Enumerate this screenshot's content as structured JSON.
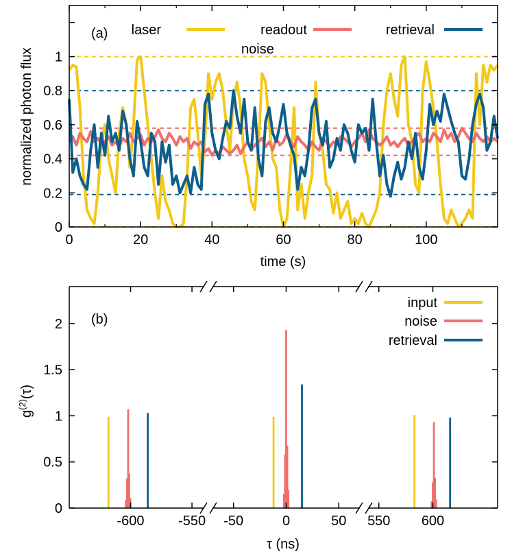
{
  "colors": {
    "yellow": "#f2c81b",
    "red": "#ef6f6c",
    "blue": "#0e5f8b",
    "black": "#000000"
  },
  "chart_data": [
    {
      "panel_label": "(a)",
      "type": "line",
      "xlabel": "time (s)",
      "ylabel": "normalized photon flux",
      "xlim": [
        0,
        120
      ],
      "ylim": [
        0,
        1.3
      ],
      "xticks": [
        0,
        20,
        40,
        60,
        80,
        100
      ],
      "yticks": [
        0,
        0.2,
        0.4,
        0.6,
        0.8,
        1
      ],
      "xtick_labels": [
        "0",
        "20",
        "40",
        "60",
        "80",
        "100"
      ],
      "ytick_labels": [
        "0",
        "0.2",
        "0.4",
        "0.6",
        "0.8",
        "1"
      ],
      "legend": [
        {
          "label": "laser",
          "color": "#f2c81b"
        },
        {
          "label": "readout",
          "label2": "noise",
          "color": "#ef6f6c"
        },
        {
          "label": "retrieval",
          "color": "#0e5f8b"
        }
      ],
      "reference_lines": [
        {
          "y": 1.0,
          "color": "#f2c81b"
        },
        {
          "y": 0.0,
          "color": "#f2c81b"
        },
        {
          "y": 0.8,
          "color": "#0e5f8b"
        },
        {
          "y": 0.19,
          "color": "#0e5f8b"
        },
        {
          "y": 0.58,
          "color": "#ef6f6c"
        },
        {
          "y": 0.42,
          "color": "#ef6f6c"
        }
      ],
      "series": [
        {
          "name": "laser",
          "color": "#f2c81b",
          "x": [
            0,
            1,
            2,
            3,
            4,
            5,
            6,
            7,
            8,
            9,
            10,
            11,
            12,
            13,
            14,
            15,
            16,
            17,
            18,
            19,
            20,
            21,
            22,
            23,
            24,
            25,
            26,
            27,
            28,
            29,
            30,
            31,
            32,
            33,
            34,
            35,
            36,
            37,
            38,
            39,
            40,
            41,
            42,
            43,
            44,
            45,
            46,
            47,
            48,
            49,
            50,
            51,
            52,
            53,
            54,
            55,
            56,
            57,
            58,
            59,
            60,
            61,
            62,
            63,
            64,
            65,
            66,
            67,
            68,
            69,
            70,
            71,
            72,
            73,
            74,
            75,
            76,
            77,
            78,
            79,
            80,
            81,
            82,
            83,
            84,
            85,
            86,
            87,
            88,
            89,
            90,
            91,
            92,
            93,
            94,
            95,
            96,
            97,
            98,
            99,
            100,
            101,
            102,
            103,
            104,
            105,
            106,
            107,
            108,
            109,
            110,
            111,
            112,
            113,
            114,
            115,
            116,
            117,
            118,
            119,
            120
          ],
          "y": [
            0.92,
            0.95,
            0.94,
            0.7,
            0.3,
            0.1,
            0.05,
            0.02,
            0.2,
            0.5,
            0.6,
            0.4,
            0.3,
            0.2,
            0.55,
            0.7,
            0.6,
            0.35,
            0.6,
            0.98,
            1.0,
            0.8,
            0.6,
            0.4,
            0.2,
            0.05,
            0.3,
            0.15,
            0.1,
            0.02,
            0.0,
            0.0,
            0.02,
            0.3,
            0.7,
            0.75,
            0.55,
            0.3,
            0.5,
            0.9,
            0.75,
            0.85,
            0.9,
            0.8,
            0.6,
            0.45,
            0.75,
            0.85,
            0.7,
            0.4,
            0.3,
            0.15,
            0.1,
            0.45,
            0.9,
            0.85,
            0.6,
            0.4,
            0.35,
            0.1,
            0.0,
            0.05,
            0.35,
            0.7,
            0.1,
            0.25,
            0.05,
            0.2,
            0.3,
            0.85,
            0.55,
            0.45,
            0.25,
            0.22,
            0.08,
            0.2,
            0.05,
            0.1,
            0.15,
            0.02,
            0.05,
            0.02,
            0.08,
            0.02,
            0.0,
            0.05,
            0.1,
            0.2,
            0.6,
            0.8,
            0.9,
            0.75,
            0.65,
            0.95,
            1.0,
            0.6,
            0.5,
            0.25,
            0.2,
            0.8,
            0.97,
            0.85,
            0.7,
            0.5,
            0.25,
            0.05,
            0.02,
            0.1,
            0.05,
            0.0,
            0.02,
            0.05,
            0.1,
            0.05,
            0.9,
            0.6,
            0.95,
            0.85,
            0.95,
            0.92,
            0.95
          ]
        },
        {
          "name": "readout noise",
          "color": "#ef6f6c",
          "x": [
            0,
            1,
            2,
            3,
            4,
            5,
            6,
            7,
            8,
            9,
            10,
            11,
            12,
            13,
            14,
            15,
            16,
            17,
            18,
            19,
            20,
            21,
            22,
            23,
            24,
            25,
            26,
            27,
            28,
            29,
            30,
            31,
            32,
            33,
            34,
            35,
            36,
            37,
            38,
            39,
            40,
            41,
            42,
            43,
            44,
            45,
            46,
            47,
            48,
            49,
            50,
            51,
            52,
            53,
            54,
            55,
            56,
            57,
            58,
            59,
            60,
            61,
            62,
            63,
            64,
            65,
            66,
            67,
            68,
            69,
            70,
            71,
            72,
            73,
            74,
            75,
            76,
            77,
            78,
            79,
            80,
            81,
            82,
            83,
            84,
            85,
            86,
            87,
            88,
            89,
            90,
            91,
            92,
            93,
            94,
            95,
            96,
            97,
            98,
            99,
            100,
            101,
            102,
            103,
            104,
            105,
            106,
            107,
            108,
            109,
            110,
            111,
            112,
            113,
            114,
            115,
            116,
            117,
            118,
            119,
            120
          ],
          "y": [
            0.5,
            0.53,
            0.48,
            0.55,
            0.52,
            0.5,
            0.56,
            0.5,
            0.52,
            0.49,
            0.5,
            0.53,
            0.48,
            0.5,
            0.47,
            0.52,
            0.5,
            0.55,
            0.5,
            0.52,
            0.54,
            0.48,
            0.52,
            0.5,
            0.53,
            0.57,
            0.52,
            0.5,
            0.55,
            0.52,
            0.48,
            0.53,
            0.5,
            0.52,
            0.46,
            0.5,
            0.48,
            0.5,
            0.44,
            0.46,
            0.42,
            0.45,
            0.43,
            0.47,
            0.45,
            0.43,
            0.45,
            0.48,
            0.43,
            0.47,
            0.5,
            0.45,
            0.48,
            0.5,
            0.52,
            0.47,
            0.5,
            0.45,
            0.52,
            0.48,
            0.5,
            0.55,
            0.5,
            0.47,
            0.53,
            0.5,
            0.48,
            0.45,
            0.5,
            0.47,
            0.45,
            0.52,
            0.5,
            0.47,
            0.5,
            0.48,
            0.53,
            0.52,
            0.5,
            0.47,
            0.5,
            0.52,
            0.55,
            0.5,
            0.57,
            0.52,
            0.5,
            0.48,
            0.5,
            0.53,
            0.48,
            0.5,
            0.47,
            0.5,
            0.52,
            0.48,
            0.5,
            0.53,
            0.55,
            0.5,
            0.52,
            0.5,
            0.55,
            0.53,
            0.5,
            0.57,
            0.52,
            0.55,
            0.5,
            0.53,
            0.58,
            0.55,
            0.52,
            0.5,
            0.55,
            0.52,
            0.5,
            0.53,
            0.5,
            0.52,
            0.5
          ]
        },
        {
          "name": "retrieval",
          "color": "#0e5f8b",
          "x": [
            0,
            1,
            2,
            3,
            4,
            5,
            6,
            7,
            8,
            9,
            10,
            11,
            12,
            13,
            14,
            15,
            16,
            17,
            18,
            19,
            20,
            21,
            22,
            23,
            24,
            25,
            26,
            27,
            28,
            29,
            30,
            31,
            32,
            33,
            34,
            35,
            36,
            37,
            38,
            39,
            40,
            41,
            42,
            43,
            44,
            45,
            46,
            47,
            48,
            49,
            50,
            51,
            52,
            53,
            54,
            55,
            56,
            57,
            58,
            59,
            60,
            61,
            62,
            63,
            64,
            65,
            66,
            67,
            68,
            69,
            70,
            71,
            72,
            73,
            74,
            75,
            76,
            77,
            78,
            79,
            80,
            81,
            82,
            83,
            84,
            85,
            86,
            87,
            88,
            89,
            90,
            91,
            92,
            93,
            94,
            95,
            96,
            97,
            98,
            99,
            100,
            101,
            102,
            103,
            104,
            105,
            106,
            107,
            108,
            109,
            110,
            111,
            112,
            113,
            114,
            115,
            116,
            117,
            118,
            119,
            120
          ],
          "y": [
            0.75,
            0.32,
            0.4,
            0.3,
            0.25,
            0.22,
            0.45,
            0.6,
            0.35,
            0.55,
            0.42,
            0.65,
            0.5,
            0.55,
            0.45,
            0.68,
            0.6,
            0.4,
            0.3,
            0.62,
            0.5,
            0.35,
            0.3,
            0.55,
            0.5,
            0.25,
            0.5,
            0.38,
            0.48,
            0.25,
            0.3,
            0.2,
            0.25,
            0.3,
            0.2,
            0.35,
            0.25,
            0.22,
            0.72,
            0.78,
            0.55,
            0.45,
            0.4,
            0.52,
            0.62,
            0.58,
            0.8,
            0.65,
            0.55,
            0.75,
            0.5,
            0.45,
            0.7,
            0.4,
            0.3,
            0.62,
            0.7,
            0.55,
            0.5,
            0.6,
            0.72,
            0.55,
            0.48,
            0.42,
            0.22,
            0.35,
            0.3,
            0.45,
            0.7,
            0.75,
            0.55,
            0.48,
            0.62,
            0.35,
            0.4,
            0.52,
            0.45,
            0.6,
            0.55,
            0.45,
            0.38,
            0.6,
            0.55,
            0.58,
            0.45,
            0.75,
            0.5,
            0.3,
            0.42,
            0.25,
            0.18,
            0.3,
            0.38,
            0.28,
            0.35,
            0.5,
            0.4,
            0.55,
            0.35,
            0.28,
            0.45,
            0.72,
            0.6,
            0.68,
            0.62,
            0.78,
            0.7,
            0.62,
            0.55,
            0.5,
            0.3,
            0.28,
            0.4,
            0.6,
            0.72,
            0.78,
            0.7,
            0.45,
            0.5,
            0.65,
            0.52
          ]
        }
      ]
    },
    {
      "panel_label": "(b)",
      "type": "bar",
      "xlabel": "τ (ns)",
      "ylabel": "g(2)(τ)",
      "ylim": [
        0,
        2.4
      ],
      "yticks": [
        0,
        0.5,
        1,
        1.5,
        2
      ],
      "ytick_labels": [
        "0",
        "0.5",
        "1",
        "1.5",
        "2"
      ],
      "x_segments": [
        {
          "xlim": [
            -650,
            -540
          ],
          "xticks": [
            -600,
            -550
          ],
          "xtick_labels": [
            "-600",
            "-550"
          ]
        },
        {
          "xlim": [
            -70,
            70
          ],
          "xticks": [
            -50,
            0,
            50
          ],
          "xtick_labels": [
            "-50",
            "0",
            "50"
          ]
        },
        {
          "xlim": [
            540,
            660
          ],
          "xticks": [
            550,
            600
          ],
          "xtick_labels": [
            "550",
            "600"
          ]
        }
      ],
      "legend": [
        {
          "label": "input",
          "color": "#f2c81b"
        },
        {
          "label": "noise",
          "color": "#ef6f6c"
        },
        {
          "label": "retrieval",
          "color": "#0e5f8b"
        }
      ],
      "series": [
        {
          "name": "input",
          "color": "#f2c81b",
          "peaks": [
            {
              "x": -618,
              "y": 0.99
            },
            {
              "x": -12,
              "y": 0.99
            },
            {
              "x": 583,
              "y": 1.01
            }
          ]
        },
        {
          "name": "noise",
          "color": "#ef6f6c",
          "peaks": [
            {
              "x": -602,
              "y": 1.07
            },
            {
              "x": 0,
              "y": 1.93
            },
            {
              "x": 601,
              "y": 0.93
            }
          ]
        },
        {
          "name": "retrieval",
          "color": "#0e5f8b",
          "peaks": [
            {
              "x": -586,
              "y": 1.03
            },
            {
              "x": 15,
              "y": 1.34
            },
            {
              "x": 616,
              "y": 0.98
            }
          ]
        }
      ]
    }
  ]
}
